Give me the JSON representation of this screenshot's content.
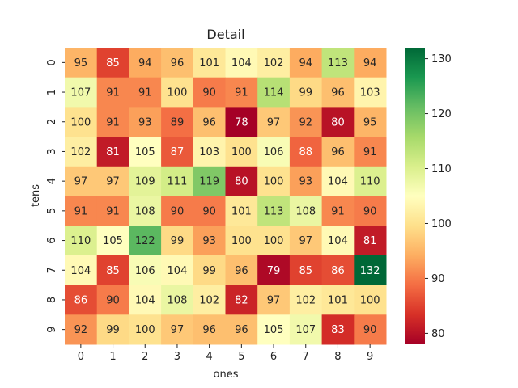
{
  "chart_data": {
    "type": "heatmap",
    "title": "Detail",
    "xlabel": "ones",
    "ylabel": "tens",
    "x_categories": [
      "0",
      "1",
      "2",
      "3",
      "4",
      "5",
      "6",
      "7",
      "8",
      "9"
    ],
    "y_categories": [
      "0",
      "1",
      "2",
      "3",
      "4",
      "5",
      "6",
      "7",
      "8",
      "9"
    ],
    "values": [
      [
        95,
        85,
        94,
        96,
        101,
        104,
        102,
        94,
        113,
        94
      ],
      [
        107,
        91,
        91,
        100,
        90,
        91,
        114,
        99,
        96,
        103
      ],
      [
        100,
        91,
        93,
        89,
        96,
        78,
        97,
        92,
        80,
        95
      ],
      [
        102,
        81,
        105,
        87,
        103,
        100,
        106,
        88,
        96,
        91
      ],
      [
        97,
        97,
        109,
        111,
        119,
        80,
        100,
        93,
        104,
        110
      ],
      [
        91,
        91,
        108,
        90,
        90,
        101,
        113,
        108,
        91,
        90
      ],
      [
        110,
        105,
        122,
        99,
        93,
        100,
        100,
        97,
        104,
        81
      ],
      [
        104,
        85,
        106,
        104,
        99,
        96,
        79,
        85,
        86,
        132
      ],
      [
        86,
        90,
        104,
        108,
        102,
        82,
        97,
        102,
        101,
        100
      ],
      [
        92,
        99,
        100,
        97,
        96,
        96,
        105,
        107,
        83,
        90
      ]
    ],
    "colormap": "RdYlGn",
    "color_range": [
      78,
      132
    ],
    "colorbar_ticks": [
      80,
      90,
      100,
      110,
      120,
      130
    ],
    "annotations": true
  }
}
